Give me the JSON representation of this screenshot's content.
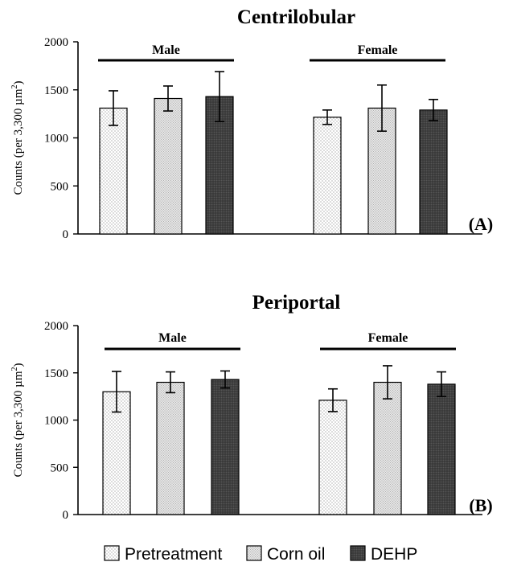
{
  "chart_data": [
    {
      "type": "bar",
      "title": "Centrilobular",
      "panel_label": "(A)",
      "ylabel": "Counts (per 3,300 µm",
      "ylabel_sup": "2",
      "ylabel_close": ")",
      "ylim": [
        0,
        2000
      ],
      "yticks": [
        "0",
        "500",
        "1000",
        "1500",
        "2000"
      ],
      "grid": false,
      "groups": [
        {
          "name": "Male",
          "values": [
            1310,
            1410,
            1430
          ],
          "errors": [
            180,
            130,
            260
          ]
        },
        {
          "name": "Female",
          "values": [
            1215,
            1310,
            1290
          ],
          "errors": [
            75,
            240,
            110
          ]
        }
      ]
    },
    {
      "type": "bar",
      "title": "Periportal",
      "panel_label": "(B)",
      "ylabel": "Counts (per 3,300 µm",
      "ylabel_sup": "2",
      "ylabel_close": ")",
      "ylim": [
        0,
        2000
      ],
      "yticks": [
        "0",
        "500",
        "1000",
        "1500",
        "2000"
      ],
      "grid": false,
      "groups": [
        {
          "name": "Male",
          "values": [
            1300,
            1400,
            1430
          ],
          "errors": [
            215,
            110,
            90
          ]
        },
        {
          "name": "Female",
          "values": [
            1210,
            1400,
            1380
          ],
          "errors": [
            120,
            175,
            130
          ]
        }
      ]
    }
  ],
  "legend": {
    "placement": "bottom",
    "entries": [
      {
        "label": "Pretreatment",
        "pattern": "sparse-dots",
        "color": "#ffffff"
      },
      {
        "label": "Corn oil",
        "pattern": "dense-dots",
        "color": "#dcdcdc"
      },
      {
        "label": "DEHP",
        "pattern": "dark",
        "color": "#3c3c3c"
      }
    ]
  }
}
